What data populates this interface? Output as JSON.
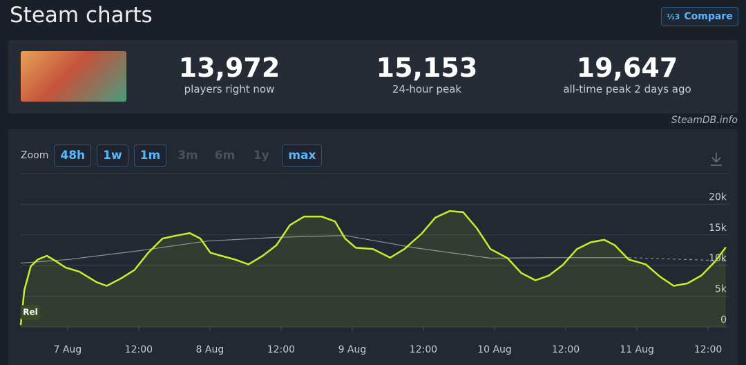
{
  "header": {
    "title": "Steam charts",
    "compare": "Compare"
  },
  "stats": [
    {
      "value": "13,972",
      "label": "players right now"
    },
    {
      "value": "15,153",
      "label": "24-hour peak"
    },
    {
      "value": "19,647",
      "label": "all-time peak 2 days ago"
    }
  ],
  "watermark": "SteamDB.info",
  "zoom": {
    "label": "Zoom",
    "buttons": [
      {
        "text": "48h",
        "enabled": true
      },
      {
        "text": "1w",
        "enabled": true
      },
      {
        "text": "1m",
        "enabled": true
      },
      {
        "text": "3m",
        "enabled": false
      },
      {
        "text": "6m",
        "enabled": false
      },
      {
        "text": "1y",
        "enabled": false
      },
      {
        "text": "max",
        "enabled": true
      }
    ]
  },
  "chart_data": {
    "type": "line",
    "annotation": "Rel",
    "xlim": [
      -7.9,
      111.6
    ],
    "ylim": [
      0,
      25000
    ],
    "xticks": [
      {
        "value": 0,
        "label": "7 Aug"
      },
      {
        "value": 12,
        "label": "12:00"
      },
      {
        "value": 24,
        "label": "8 Aug"
      },
      {
        "value": 36,
        "label": "12:00"
      },
      {
        "value": 48,
        "label": "9 Aug"
      },
      {
        "value": 60,
        "label": "12:00"
      },
      {
        "value": 72,
        "label": "10 Aug"
      },
      {
        "value": 84,
        "label": "12:00"
      },
      {
        "value": 96,
        "label": "11 Aug"
      },
      {
        "value": 108,
        "label": "12:00"
      }
    ],
    "yticks": [
      0,
      {
        "value": 5000,
        "label": "5k"
      },
      {
        "value": 10000,
        "label": "10k"
      },
      {
        "value": 15000,
        "label": "15k"
      },
      {
        "value": 20000,
        "label": "20k"
      },
      25000
    ],
    "grid": true,
    "series": [
      {
        "color": "#8b929a",
        "dashed": false,
        "fill": false,
        "x": [
          -7.9,
          0.2,
          11.9,
          23.5,
          35.2,
          46.8,
          58.5,
          71.3,
          81.8,
          94.6
        ],
        "values": [
          10400,
          11000,
          12400,
          14000,
          14600,
          14900,
          12900,
          11200,
          11300,
          11300
        ]
      },
      {
        "color": "#8b929a",
        "dashed": true,
        "fill": false,
        "x": [
          94.6,
          110.9
        ],
        "values": [
          11300,
          10800
        ]
      },
      {
        "color": "#c6f02c",
        "dashed": false,
        "fill": true,
        "x": [
          -7.9,
          -7.3,
          -6.2,
          -5.0,
          -3.5,
          -2.1,
          -0.35,
          2.0,
          4.9,
          6.6,
          9.0,
          11.3,
          13.6,
          16.0,
          18.4,
          20.6,
          22.4,
          24.1,
          25.9,
          28.2,
          30.5,
          32.9,
          35.2,
          37.5,
          39.9,
          42.8,
          45.1,
          46.8,
          48.6,
          51.5,
          54.4,
          56.8,
          59.7,
          62.0,
          64.4,
          66.7,
          69.0,
          71.3,
          74.2,
          76.5,
          78.9,
          81.2,
          83.5,
          85.9,
          88.2,
          90.5,
          92.3,
          94.6,
          97.5,
          99.9,
          102.2,
          104.5,
          106.9,
          109.2,
          111.0
        ],
        "values": [
          300,
          6000,
          9900,
          11000,
          11600,
          10800,
          9700,
          9000,
          7300,
          6700,
          7900,
          9300,
          12100,
          14400,
          14900,
          15300,
          14400,
          12100,
          11600,
          11000,
          10200,
          11600,
          13300,
          16600,
          18000,
          18000,
          17200,
          14400,
          12900,
          12700,
          11300,
          12700,
          15200,
          17800,
          18900,
          18700,
          16100,
          12700,
          11200,
          8800,
          7600,
          8400,
          10100,
          12700,
          13800,
          14200,
          13300,
          11000,
          10200,
          8200,
          6700,
          7100,
          8400,
          10700,
          13000
        ]
      }
    ]
  }
}
